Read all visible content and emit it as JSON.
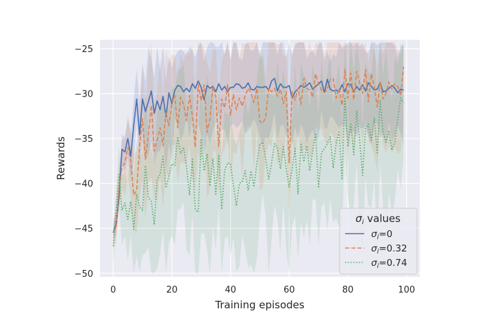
{
  "chart_data": {
    "type": "line",
    "title": "",
    "xlabel": "Training episodes",
    "ylabel": "Rewards",
    "xlim": [
      -4.5,
      104.5
    ],
    "ylim": [
      -50.4,
      -24.0
    ],
    "xticks": [
      0,
      20,
      40,
      60,
      80,
      100
    ],
    "yticks": [
      -25,
      -30,
      -35,
      -40,
      -45,
      -50
    ],
    "xtick_labels": [
      "0",
      "20",
      "40",
      "60",
      "80",
      "100"
    ],
    "ytick_labels": [
      "−25",
      "−30",
      "−35",
      "−40",
      "−45",
      "−50"
    ],
    "grid": true,
    "legend": {
      "title": "σi values",
      "title_symbol": "σ",
      "title_sub": "i",
      "title_rest": " values",
      "placement": "lower-right",
      "entries": [
        {
          "sym": "σ",
          "sub": "i",
          "rest": "=0"
        },
        {
          "sym": "σ",
          "sub": "i",
          "rest": "=0.32"
        },
        {
          "sym": "σ",
          "sub": "i",
          "rest": "=0.74"
        }
      ]
    },
    "x": [
      0,
      1,
      2,
      3,
      4,
      5,
      6,
      7,
      8,
      9,
      10,
      11,
      12,
      13,
      14,
      15,
      16,
      17,
      18,
      19,
      20,
      21,
      22,
      23,
      24,
      25,
      26,
      27,
      28,
      29,
      30,
      31,
      32,
      33,
      34,
      35,
      36,
      37,
      38,
      39,
      40,
      41,
      42,
      43,
      44,
      45,
      46,
      47,
      48,
      49,
      50,
      51,
      52,
      53,
      54,
      55,
      56,
      57,
      58,
      59,
      60,
      61,
      62,
      63,
      64,
      65,
      66,
      67,
      68,
      69,
      70,
      71,
      72,
      73,
      74,
      75,
      76,
      77,
      78,
      79,
      80,
      81,
      82,
      83,
      84,
      85,
      86,
      87,
      88,
      89,
      90,
      91,
      92,
      93,
      94,
      95,
      96,
      97,
      98,
      99
    ],
    "series": [
      {
        "name": "σi=0",
        "color": "#4c72b0",
        "dash": "solid",
        "values": [
          -45.5,
          -44.5,
          -41.5,
          -36.2,
          -36.5,
          -35,
          -37,
          -33.5,
          -30.6,
          -34.6,
          -30.6,
          -32,
          -30.9,
          -29.7,
          -32.2,
          -30.8,
          -31.8,
          -30.3,
          -32.6,
          -29.9,
          -31.1,
          -29.6,
          -29.1,
          -29.2,
          -29.8,
          -29.4,
          -29.8,
          -28.9,
          -29.4,
          -28.6,
          -29.3,
          -30.7,
          -29.1,
          -29.4,
          -29.2,
          -29.8,
          -28.9,
          -29.6,
          -29.2,
          -29.8,
          -29.3,
          -29.3,
          -28.9,
          -29,
          -29.4,
          -29.3,
          -28.8,
          -29.5,
          -29.6,
          -29.2,
          -29.3,
          -29.3,
          -29.2,
          -29.6,
          -28.6,
          -28.3,
          -29.7,
          -28.9,
          -29.3,
          -29.3,
          -29.1,
          -30.5,
          -29.8,
          -29.5,
          -29.1,
          -29.3,
          -29.1,
          -28.8,
          -29.5,
          -29.2,
          -28.9,
          -28.6,
          -29.9,
          -28.4,
          -29.5,
          -29.7,
          -29.6,
          -29.8,
          -29,
          -29.8,
          -28.9,
          -29,
          -29.8,
          -29.2,
          -29.6,
          -29,
          -29.7,
          -28.8,
          -29.2,
          -29.6,
          -29.5,
          -28.8,
          -29.8,
          -29.7,
          -29.4,
          -29.1,
          -29.4,
          -29.9,
          -29.5,
          -29.6
        ]
      },
      {
        "name": "σi=0.32",
        "color": "#dd8452",
        "dash": "dashed",
        "values": [
          -45.5,
          -44.8,
          -40.5,
          -38.2,
          -37.7,
          -36,
          -37.5,
          -41.3,
          -40.8,
          -35.8,
          -32.8,
          -37.3,
          -34.6,
          -31.3,
          -36.4,
          -35.2,
          -33.8,
          -35.8,
          -32,
          -33.6,
          -31.1,
          -30.2,
          -33.8,
          -30.4,
          -31.2,
          -33,
          -30.2,
          -32.5,
          -36,
          -29,
          -30.8,
          -29,
          -34.3,
          -32.8,
          -29.2,
          -30.4,
          -35.9,
          -30.6,
          -31.6,
          -29,
          -32.4,
          -30.1,
          -31.8,
          -30.5,
          -31.4,
          -30.2,
          -29.4,
          -29.9,
          -31,
          -29.4,
          -33.1,
          -33.3,
          -32.6,
          -29.4,
          -29.8,
          -29.4,
          -30.3,
          -29.5,
          -31.1,
          -29.8,
          -37.7,
          -29.8,
          -30.7,
          -29.4,
          -31.2,
          -28.3,
          -29.4,
          -29.6,
          -30.4,
          -27.8,
          -28.9,
          -29.6,
          -29.9,
          -29.5,
          -28.4,
          -28.3,
          -30.5,
          -29.4,
          -31.3,
          -27.3,
          -30.5,
          -27.7,
          -30.7,
          -27.5,
          -28.8,
          -30,
          -27.3,
          -30.9,
          -27.8,
          -29.2,
          -31.5,
          -28.7,
          -30.6,
          -30,
          -28.7,
          -29.5,
          -28.9,
          -29.2,
          -30.2,
          -27
        ]
      },
      {
        "name": "σi=0.74",
        "color": "#55a868",
        "dash": "dotted",
        "values": [
          -47,
          -43,
          -39,
          -43,
          -42.2,
          -44,
          -42,
          -45.1,
          -41.2,
          -42.6,
          -43,
          -38,
          -41.6,
          -42,
          -44.6,
          -39.6,
          -39,
          -37,
          -40.5,
          -39.2,
          -37.8,
          -38,
          -34.8,
          -36.7,
          -36,
          -38.1,
          -41.3,
          -37.3,
          -42.9,
          -43.2,
          -35,
          -38.6,
          -36.7,
          -40.3,
          -37.2,
          -41.2,
          -36.8,
          -42.9,
          -38.6,
          -37.7,
          -37.8,
          -40.2,
          -42.5,
          -40,
          -39.8,
          -38.6,
          -40.8,
          -38.6,
          -40.4,
          -37.7,
          -35.7,
          -35.4,
          -37.3,
          -39.5,
          -37.7,
          -35.6,
          -36,
          -38.4,
          -35.9,
          -38.4,
          -40.4,
          -38.4,
          -36.1,
          -41.2,
          -35.5,
          -37.6,
          -35.8,
          -38.6,
          -36.4,
          -34.4,
          -40.5,
          -36.6,
          -36.1,
          -35.6,
          -34.8,
          -38.3,
          -35.6,
          -34.3,
          -39.6,
          -30.4,
          -35.9,
          -33.4,
          -36.8,
          -31.9,
          -35.1,
          -39.1,
          -33.9,
          -33.4,
          -35.2,
          -32.7,
          -36.6,
          -30.7,
          -34.3,
          -35.4,
          -34.1,
          -36.3,
          -35.4,
          -32.8,
          -30.5,
          -31
        ]
      }
    ]
  }
}
